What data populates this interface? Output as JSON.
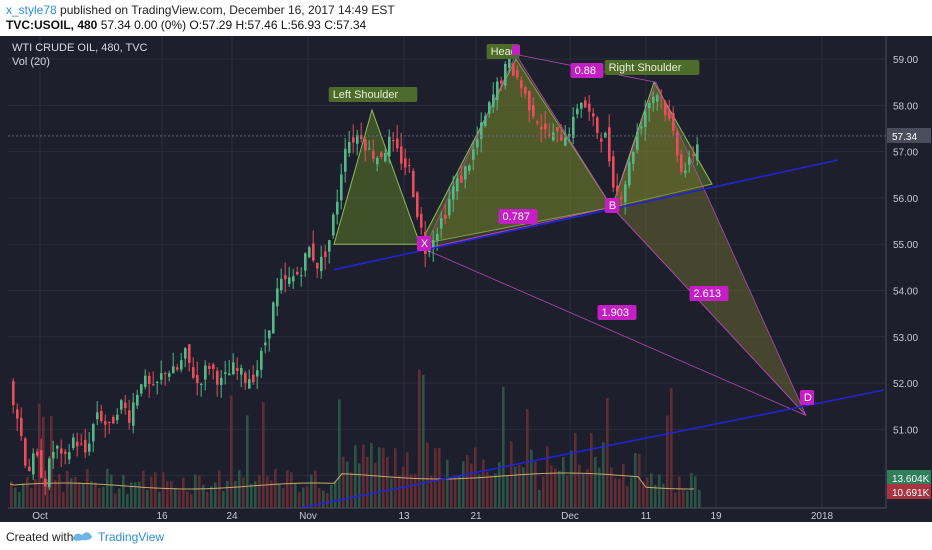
{
  "header": {
    "user": "x_style78",
    "published": "published on TradingView.com, December 16, 2017 14:49 EST",
    "symbol": "TVC:USOIL, 480",
    "ohlc": "57.34 0.00 (0%) O:57.29 H:57.46 L:56.93 C:57.34"
  },
  "footer": {
    "created_with": "Created with",
    "brand": "TradingView"
  },
  "colors": {
    "bg": "#1d1f2c",
    "up": "#53b987",
    "down": "#eb4d5c",
    "grid": "#2a2e3c",
    "pattern_fill": "#6b8e23",
    "pattern_line": "#8fbc5a",
    "harmonic_fill": "#6f6b2e",
    "trend": "#2323d6",
    "label_bg": "#c41fc4",
    "price_label": "#4a4d5c",
    "vol_up_label": "#2f7f5a",
    "vol_down_label": "#a8343f"
  },
  "chart_data": {
    "type": "candlestick",
    "title": "WTI CRUDE OIL, 480, TVC",
    "indicator": "Vol (20)",
    "y_axis": {
      "ticks": [
        "59.00",
        "58.00",
        "57.00",
        "56.00",
        "55.00",
        "54.00",
        "53.00",
        "52.00",
        "51.00",
        "50.00"
      ],
      "range": [
        49.3,
        59.5
      ]
    },
    "x_axis": {
      "ticks": [
        "Oct",
        "16",
        "24",
        "Nov",
        "13",
        "21",
        "Dec",
        "11",
        "19",
        "2018"
      ]
    },
    "last_price": "57.34",
    "volume_labels": [
      "13.604K",
      "10.691K"
    ],
    "price_path": [
      [
        0,
        52.1
      ],
      [
        6,
        52.6
      ],
      [
        12,
        51.7
      ],
      [
        18,
        51.1
      ],
      [
        26,
        50.1
      ],
      [
        34,
        50.4
      ],
      [
        44,
        49.9
      ],
      [
        54,
        50.7
      ],
      [
        62,
        50.2
      ],
      [
        72,
        50.8
      ],
      [
        84,
        50.5
      ],
      [
        96,
        51.4
      ],
      [
        108,
        51.0
      ],
      [
        118,
        51.6
      ],
      [
        128,
        51.3
      ],
      [
        140,
        52.1
      ],
      [
        152,
        51.8
      ],
      [
        164,
        52.3
      ],
      [
        174,
        52.2
      ],
      [
        184,
        52.6
      ],
      [
        196,
        52.0
      ],
      [
        208,
        52.4
      ],
      [
        220,
        52.0
      ],
      [
        232,
        52.3
      ],
      [
        244,
        52.1
      ],
      [
        254,
        52.2
      ],
      [
        262,
        52.7
      ],
      [
        270,
        53.5
      ],
      [
        278,
        54.1
      ],
      [
        288,
        54.2
      ],
      [
        298,
        54.4
      ],
      [
        308,
        54.9
      ],
      [
        318,
        54.5
      ],
      [
        328,
        55.1
      ],
      [
        336,
        56.0
      ],
      [
        344,
        57.2
      ],
      [
        352,
        57.3
      ],
      [
        360,
        57.4
      ],
      [
        368,
        57.0
      ],
      [
        378,
        56.9
      ],
      [
        388,
        57.2
      ],
      [
        398,
        56.9
      ],
      [
        408,
        56.6
      ],
      [
        418,
        55.5
      ],
      [
        424,
        54.9
      ],
      [
        432,
        55.2
      ],
      [
        442,
        55.6
      ],
      [
        452,
        56.2
      ],
      [
        462,
        56.5
      ],
      [
        472,
        57.0
      ],
      [
        482,
        57.6
      ],
      [
        492,
        58.2
      ],
      [
        500,
        58.6
      ],
      [
        508,
        58.9
      ],
      [
        516,
        58.6
      ],
      [
        524,
        58.2
      ],
      [
        534,
        57.8
      ],
      [
        544,
        57.4
      ],
      [
        554,
        57.3
      ],
      [
        564,
        57.4
      ],
      [
        572,
        57.6
      ],
      [
        578,
        58.2
      ],
      [
        586,
        57.9
      ],
      [
        594,
        57.5
      ],
      [
        604,
        57.3
      ],
      [
        612,
        56.4
      ],
      [
        618,
        56.0
      ],
      [
        626,
        56.5
      ],
      [
        634,
        57.3
      ],
      [
        642,
        57.8
      ],
      [
        650,
        58.2
      ],
      [
        658,
        58.3
      ],
      [
        664,
        57.9
      ],
      [
        672,
        57.4
      ],
      [
        680,
        56.7
      ],
      [
        686,
        56.6
      ],
      [
        694,
        57.1
      ],
      [
        700,
        57.34
      ]
    ],
    "pattern_points": {
      "head_and_shoulders": [
        [
          334,
          55.0
        ],
        [
          372,
          57.9
        ],
        [
          420,
          55.0
        ],
        [
          516,
          59.0
        ],
        [
          612,
          55.8
        ],
        [
          654,
          58.5
        ],
        [
          712,
          56.3
        ]
      ],
      "harmonic": {
        "X": [
          424,
          54.9
        ],
        "A": [
          516,
          59.1
        ],
        "B": [
          612,
          55.8
        ],
        "C": [
          656,
          58.5
        ],
        "D": [
          806,
          51.3
        ]
      }
    },
    "ratios": [
      "0.787",
      "0.88",
      "1.903",
      "2.613"
    ],
    "labels": [
      "Left Shoulder",
      "Head",
      "Right Shoulder",
      "X",
      "B",
      "D"
    ],
    "volume": {
      "note": "volume bars shown",
      "max": 13604
    }
  }
}
